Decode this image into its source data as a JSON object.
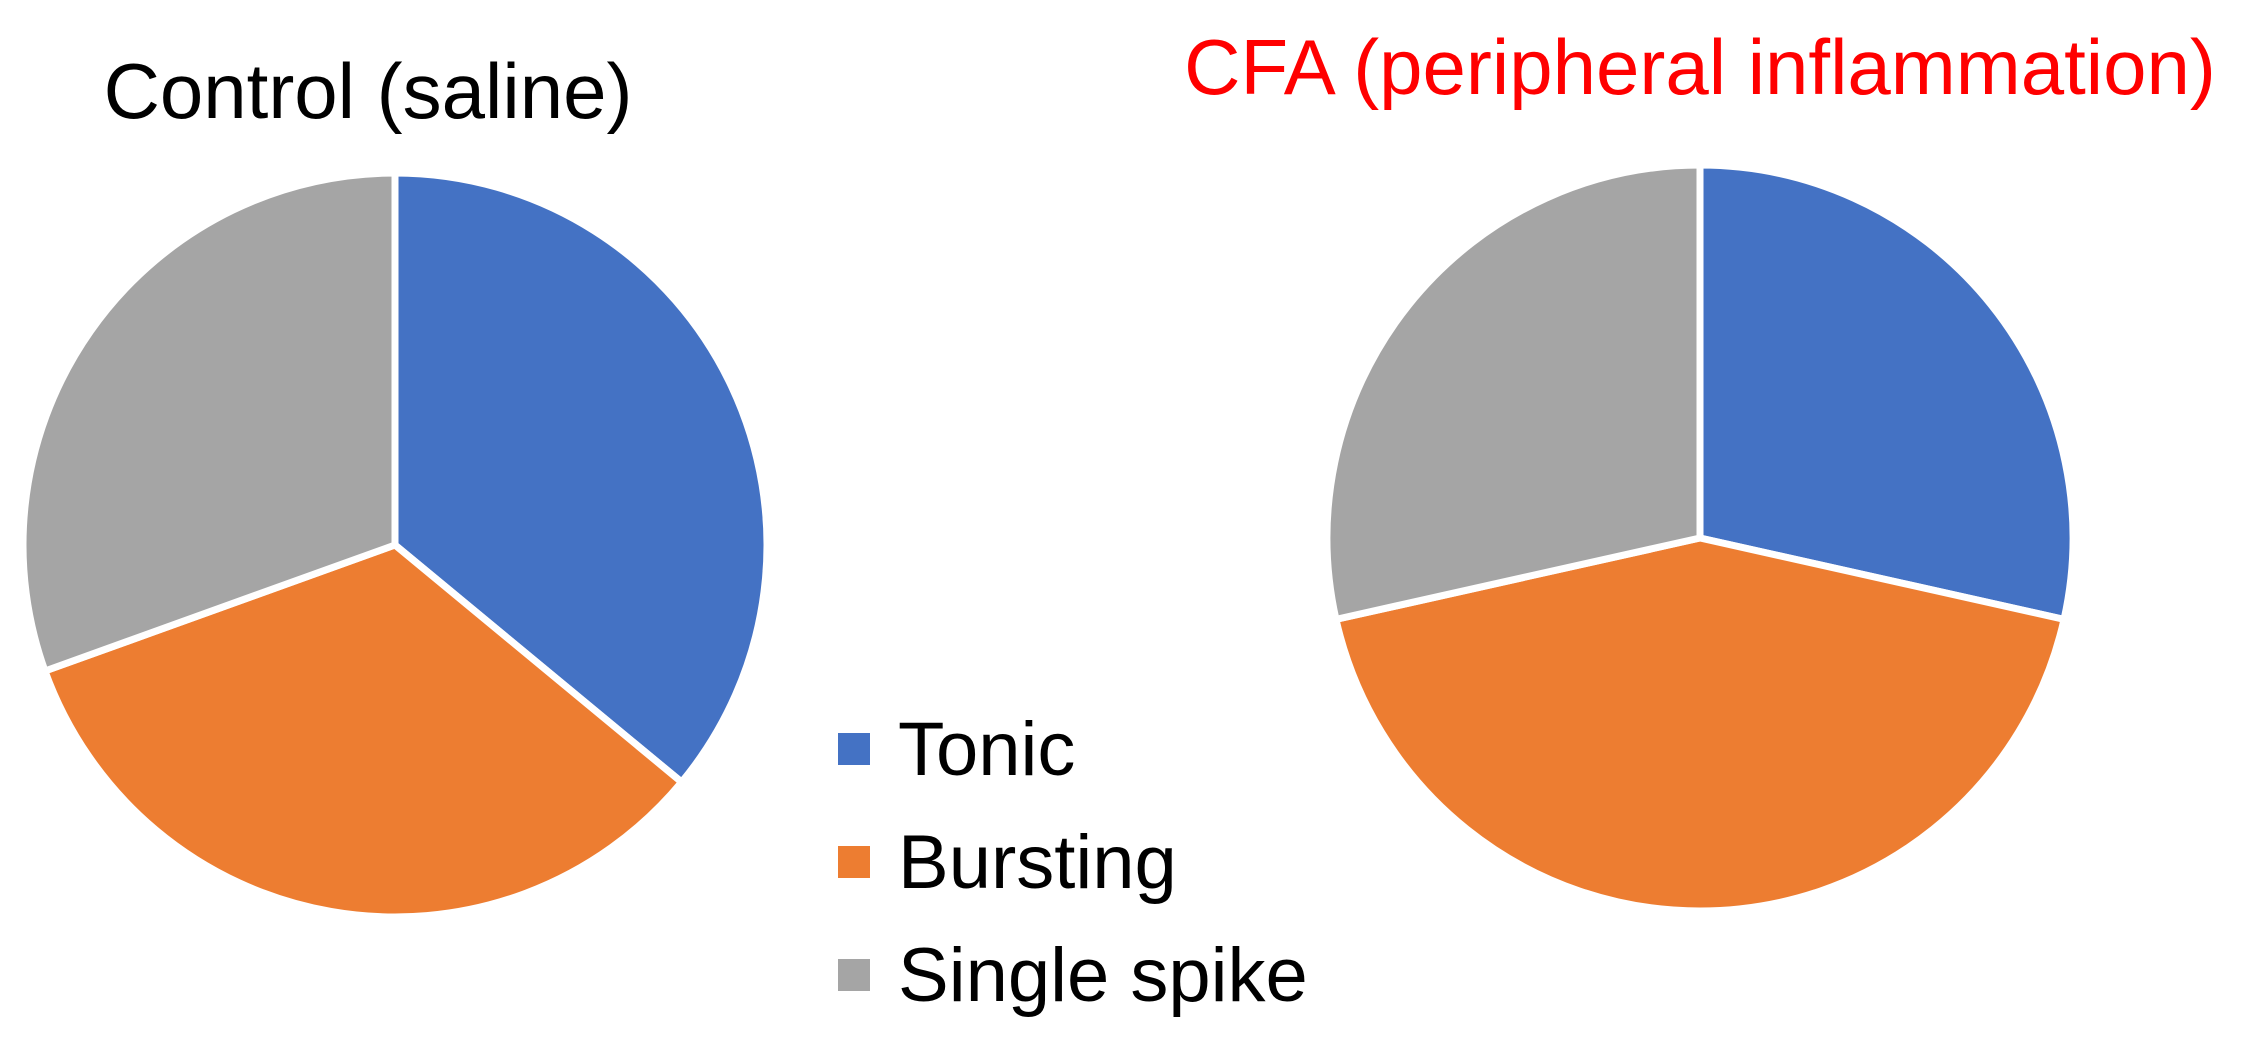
{
  "chart_data": [
    {
      "type": "pie",
      "title": "Control (saline)",
      "title_color": "#000000",
      "categories": [
        "Tonic",
        "Bursting",
        "Single spike"
      ],
      "values": [
        36,
        33.5,
        30.5
      ],
      "start": "12 o'clock",
      "direction": "clockwise"
    },
    {
      "type": "pie",
      "title": "CFA (peripheral inflammation)",
      "title_color": "#ff0000",
      "categories": [
        "Tonic",
        "Bursting",
        "Single spike"
      ],
      "values": [
        28.5,
        43,
        28.5
      ],
      "start": "12 o'clock",
      "direction": "clockwise"
    }
  ],
  "legend": {
    "placement": "bottom-center",
    "items": [
      {
        "label": "Tonic",
        "color": "#4472c4"
      },
      {
        "label": "Bursting",
        "color": "#ed7d31"
      },
      {
        "label": "Single spike",
        "color": "#a5a5a5"
      }
    ]
  },
  "slice_border_color": "#ffffff"
}
